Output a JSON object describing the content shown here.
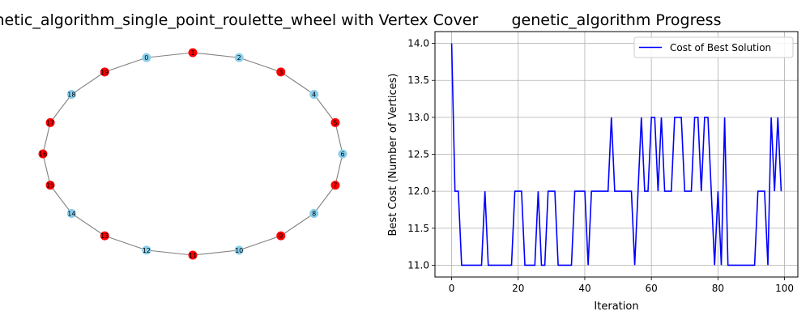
{
  "chart_data": [
    {
      "type": "graph",
      "title": "genetic_algorithm_single_point_roulette_wheel with Vertex Cover",
      "nodes": [
        "0",
        "1",
        "2",
        "3",
        "4",
        "5",
        "6",
        "7",
        "8",
        "9",
        "10",
        "11",
        "12",
        "13",
        "14",
        "15",
        "16",
        "17",
        "18",
        "19"
      ],
      "edges": [
        [
          "0",
          "1"
        ],
        [
          "1",
          "2"
        ],
        [
          "2",
          "3"
        ],
        [
          "3",
          "4"
        ],
        [
          "4",
          "5"
        ],
        [
          "5",
          "6"
        ],
        [
          "6",
          "7"
        ],
        [
          "7",
          "8"
        ],
        [
          "8",
          "9"
        ],
        [
          "9",
          "10"
        ],
        [
          "10",
          "11"
        ],
        [
          "11",
          "12"
        ],
        [
          "12",
          "13"
        ],
        [
          "13",
          "14"
        ],
        [
          "14",
          "15"
        ],
        [
          "15",
          "16"
        ],
        [
          "16",
          "17"
        ],
        [
          "17",
          "18"
        ],
        [
          "18",
          "19"
        ],
        [
          "19",
          "0"
        ]
      ],
      "cover": [
        "1",
        "3",
        "5",
        "7",
        "9",
        "11",
        "13",
        "15",
        "16",
        "17",
        "19"
      ],
      "colors": {
        "cover": "#ff0000",
        "other": "#87ceeb",
        "edge": "#808080"
      }
    },
    {
      "type": "line",
      "title": "genetic_algorithm Progress",
      "xlabel": "Iteration",
      "ylabel": "Best Cost (Number of Vertices)",
      "xlim": [
        -5,
        104
      ],
      "ylim": [
        10.84,
        14.16
      ],
      "xticks": [
        0,
        20,
        40,
        60,
        80,
        100
      ],
      "yticks": [
        11.0,
        11.5,
        12.0,
        12.5,
        13.0,
        13.5,
        14.0
      ],
      "xtick_labels": [
        "0",
        "20",
        "40",
        "60",
        "80",
        "100"
      ],
      "ytick_labels": [
        "11.0",
        "11.5",
        "12.0",
        "12.5",
        "13.0",
        "13.5",
        "14.0"
      ],
      "grid": true,
      "legend_position": "top-right",
      "series": [
        {
          "name": "Cost of Best Solution",
          "color": "#0000ff",
          "x": [
            0,
            1,
            2,
            3,
            4,
            5,
            6,
            7,
            8,
            9,
            10,
            11,
            12,
            13,
            14,
            15,
            16,
            17,
            18,
            19,
            20,
            21,
            22,
            23,
            24,
            25,
            26,
            27,
            28,
            29,
            30,
            31,
            32,
            33,
            34,
            35,
            36,
            37,
            38,
            39,
            40,
            41,
            42,
            43,
            44,
            45,
            46,
            47,
            48,
            49,
            50,
            51,
            52,
            53,
            54,
            55,
            56,
            57,
            58,
            59,
            60,
            61,
            62,
            63,
            64,
            65,
            66,
            67,
            68,
            69,
            70,
            71,
            72,
            73,
            74,
            75,
            76,
            77,
            78,
            79,
            80,
            81,
            82,
            83,
            84,
            85,
            86,
            87,
            88,
            89,
            90,
            91,
            92,
            93,
            94,
            95,
            96,
            97,
            98,
            99
          ],
          "values": [
            14,
            12,
            12,
            11,
            11,
            11,
            11,
            11,
            11,
            11,
            12,
            11,
            11,
            11,
            11,
            11,
            11,
            11,
            11,
            12,
            12,
            12,
            11,
            11,
            11,
            11,
            12,
            11,
            11,
            12,
            12,
            12,
            11,
            11,
            11,
            11,
            11,
            12,
            12,
            12,
            12,
            11,
            12,
            12,
            12,
            12,
            12,
            12,
            13,
            12,
            12,
            12,
            12,
            12,
            12,
            11,
            12,
            13,
            12,
            12,
            13,
            13,
            12,
            13,
            12,
            12,
            12,
            13,
            13,
            13,
            12,
            12,
            12,
            13,
            13,
            12,
            13,
            13,
            12,
            11,
            12,
            11,
            13,
            11,
            11,
            11,
            11,
            11,
            11,
            11,
            11,
            11,
            12,
            12,
            12,
            11,
            13,
            12,
            13,
            12
          ]
        }
      ]
    }
  ]
}
